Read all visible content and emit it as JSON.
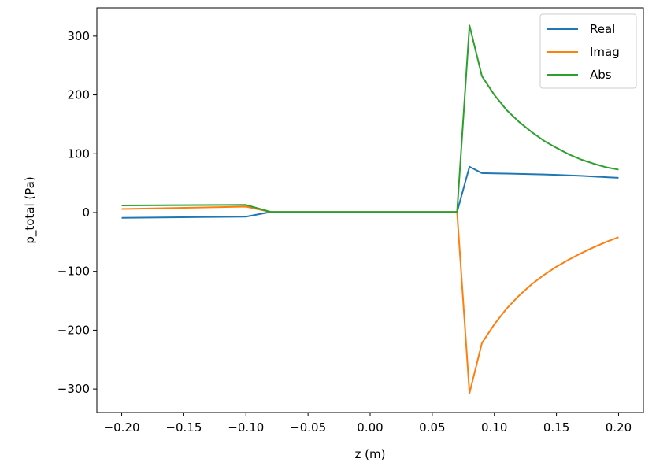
{
  "chart_data": {
    "type": "line",
    "xlabel": "z (m)",
    "ylabel": "p_total (Pa)",
    "xlim": [
      -0.22,
      0.22
    ],
    "ylim": [
      -340,
      348
    ],
    "grid": false,
    "legend_position": "top-right",
    "x": [
      -0.2,
      -0.1,
      -0.08,
      -0.07,
      0.0,
      0.07,
      0.08,
      0.09,
      0.1,
      0.11,
      0.12,
      0.13,
      0.14,
      0.15,
      0.16,
      0.17,
      0.18,
      0.19,
      0.2
    ],
    "series": [
      {
        "name": "Real",
        "color": "#1f77b4",
        "values": [
          -9,
          -7,
          1,
          1,
          1,
          1,
          78,
          67,
          66.6,
          66.2,
          65.8,
          65.3,
          64.8,
          64.1,
          63.3,
          62.4,
          61.3,
          60.1,
          59
        ]
      },
      {
        "name": "Imag",
        "color": "#ff7f0e",
        "values": [
          6,
          10,
          1,
          1,
          1,
          1,
          -307,
          -222,
          -190,
          -163,
          -141,
          -122,
          -106,
          -92,
          -80,
          -69,
          -59,
          -50,
          -42
        ]
      },
      {
        "name": "Abs",
        "color": "#2ca02c",
        "values": [
          12,
          13,
          1,
          1,
          1,
          1,
          318,
          232,
          200,
          174,
          154,
          137,
          122,
          110,
          99,
          90,
          83,
          77,
          73
        ]
      }
    ],
    "xticks": [
      {
        "value": -0.2,
        "label": "−0.20"
      },
      {
        "value": -0.15,
        "label": "−0.15"
      },
      {
        "value": -0.1,
        "label": "−0.10"
      },
      {
        "value": -0.05,
        "label": "−0.05"
      },
      {
        "value": 0.0,
        "label": "0.00"
      },
      {
        "value": 0.05,
        "label": "0.05"
      },
      {
        "value": 0.1,
        "label": "0.10"
      },
      {
        "value": 0.15,
        "label": "0.15"
      },
      {
        "value": 0.2,
        "label": "0.20"
      }
    ],
    "yticks": [
      {
        "value": 300,
        "label": "300"
      },
      {
        "value": 200,
        "label": "200"
      },
      {
        "value": 100,
        "label": "100"
      },
      {
        "value": 0,
        "label": "0"
      },
      {
        "value": -100,
        "label": "−100"
      },
      {
        "value": -200,
        "label": "−200"
      },
      {
        "value": -300,
        "label": "−300"
      }
    ]
  }
}
